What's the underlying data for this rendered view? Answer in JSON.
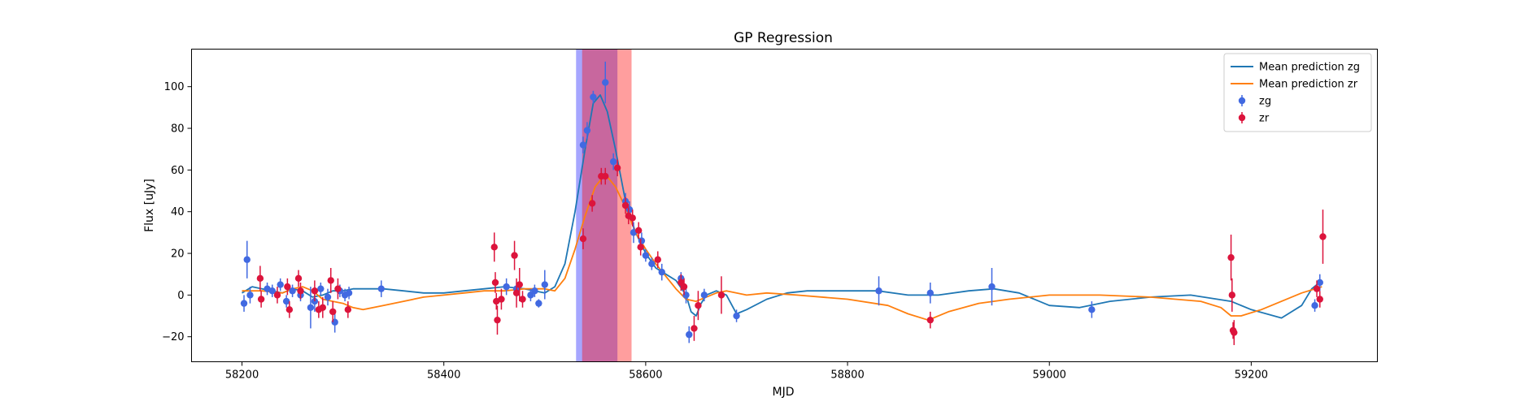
{
  "chart_data": {
    "type": "scatter",
    "title": "GP Regression",
    "xlabel": "MJD",
    "ylabel": "Flux [uJy]",
    "xlim": [
      58150,
      59325
    ],
    "ylim": [
      -32,
      118
    ],
    "x_ticks": [
      58200,
      58400,
      58600,
      58800,
      59000,
      59200
    ],
    "y_ticks": [
      -20,
      0,
      20,
      40,
      60,
      80,
      100
    ],
    "grid": false,
    "legend_position": "top-right",
    "shaded_regions": [
      {
        "x_start": 58531,
        "x_end": 58572,
        "color": "#0000ff",
        "opacity": 0.35
      },
      {
        "x_start": 58537,
        "x_end": 58586,
        "color": "#ff0000",
        "opacity": 0.38
      }
    ],
    "legend": [
      {
        "label": "Mean prediction zg",
        "kind": "line",
        "color": "#1f77b4"
      },
      {
        "label": "Mean prediction zr",
        "kind": "line",
        "color": "#ff7f0e"
      },
      {
        "label": "zg",
        "kind": "errorbar",
        "color": "#4169e1"
      },
      {
        "label": "zr",
        "kind": "errorbar",
        "color": "#dc143c"
      }
    ],
    "lines": [
      {
        "name": "Mean prediction zg",
        "color": "#1f77b4",
        "x": [
          58200,
          58210,
          58220,
          58230,
          58240,
          58250,
          58260,
          58270,
          58280,
          58290,
          58300,
          58310,
          58320,
          58340,
          58360,
          58380,
          58400,
          58420,
          58440,
          58460,
          58480,
          58500,
          58510,
          58520,
          58530,
          58540,
          58548,
          58555,
          58562,
          58570,
          58580,
          58590,
          58600,
          58610,
          58620,
          58630,
          58640,
          58645,
          58650,
          58655,
          58660,
          58670,
          58680,
          58690,
          58700,
          58720,
          58740,
          58760,
          58780,
          58800,
          58830,
          58860,
          58890,
          58920,
          58945,
          58970,
          59000,
          59030,
          59060,
          59100,
          59140,
          59180,
          59200,
          59230,
          59250,
          59260,
          59270
        ],
        "y": [
          1,
          4,
          3,
          2,
          1,
          3,
          2,
          -1,
          0,
          2,
          2,
          3,
          3,
          3,
          2,
          1,
          1,
          2,
          3,
          4,
          3,
          1,
          4,
          15,
          40,
          70,
          92,
          96,
          88,
          70,
          45,
          30,
          20,
          13,
          10,
          7,
          0,
          -8,
          -10,
          -4,
          0,
          2,
          0,
          -9,
          -7,
          -2,
          1,
          2,
          2,
          2,
          2,
          0,
          0,
          2,
          3,
          1,
          -5,
          -6,
          -3,
          -1,
          0,
          -3,
          -7,
          -11,
          -5,
          3,
          7
        ]
      },
      {
        "name": "Mean prediction zr",
        "color": "#ff7f0e",
        "x": [
          58200,
          58220,
          58240,
          58250,
          58260,
          58270,
          58280,
          58290,
          58300,
          58310,
          58320,
          58340,
          58360,
          58380,
          58400,
          58420,
          58440,
          58460,
          58480,
          58500,
          58510,
          58520,
          58530,
          58540,
          58550,
          58560,
          58570,
          58580,
          58590,
          58600,
          58610,
          58620,
          58630,
          58640,
          58650,
          58660,
          58670,
          58680,
          58700,
          58720,
          58750,
          58800,
          58840,
          58860,
          58880,
          58900,
          58930,
          58960,
          59000,
          59050,
          59100,
          59150,
          59170,
          59180,
          59190,
          59210,
          59230,
          59250,
          59270
        ],
        "y": [
          2,
          2,
          1,
          3,
          4,
          2,
          -2,
          -3,
          -4,
          -6,
          -7,
          -5,
          -3,
          -1,
          0,
          1,
          2,
          2,
          3,
          3,
          2,
          8,
          22,
          38,
          52,
          58,
          52,
          42,
          30,
          22,
          15,
          9,
          3,
          -2,
          -3,
          -1,
          1,
          2,
          0,
          1,
          0,
          -2,
          -5,
          -9,
          -12,
          -8,
          -4,
          -2,
          0,
          0,
          -1,
          -3,
          -6,
          -10,
          -10,
          -7,
          -3,
          1,
          4
        ]
      }
    ],
    "series": [
      {
        "name": "zg",
        "color": "#4169e1",
        "points": [
          {
            "x": 58202,
            "y": -4,
            "err": 4
          },
          {
            "x": 58205,
            "y": 17,
            "err": 9
          },
          {
            "x": 58208,
            "y": 0,
            "err": 4
          },
          {
            "x": 58225,
            "y": 3,
            "err": 3
          },
          {
            "x": 58230,
            "y": 2,
            "err": 3
          },
          {
            "x": 58238,
            "y": 5,
            "err": 3
          },
          {
            "x": 58244,
            "y": -3,
            "err": 3
          },
          {
            "x": 58250,
            "y": 2,
            "err": 3
          },
          {
            "x": 58258,
            "y": 0,
            "err": 3
          },
          {
            "x": 58268,
            "y": -6,
            "err": 10
          },
          {
            "x": 58272,
            "y": -3,
            "err": 5
          },
          {
            "x": 58278,
            "y": 3,
            "err": 3
          },
          {
            "x": 58285,
            "y": -1,
            "err": 4
          },
          {
            "x": 58292,
            "y": -13,
            "err": 5
          },
          {
            "x": 58297,
            "y": 2,
            "err": 3
          },
          {
            "x": 58302,
            "y": 0,
            "err": 3
          },
          {
            "x": 58306,
            "y": 1,
            "err": 3
          },
          {
            "x": 58338,
            "y": 3,
            "err": 4
          },
          {
            "x": 58462,
            "y": 4,
            "err": 4
          },
          {
            "x": 58472,
            "y": 3,
            "err": 3
          },
          {
            "x": 58486,
            "y": 0,
            "err": 3
          },
          {
            "x": 58490,
            "y": 2,
            "err": 3
          },
          {
            "x": 58494,
            "y": -4,
            "err": 2
          },
          {
            "x": 58500,
            "y": 5,
            "err": 7
          },
          {
            "x": 58538,
            "y": 72,
            "err": 4
          },
          {
            "x": 58542,
            "y": 79,
            "err": 4
          },
          {
            "x": 58548,
            "y": 95,
            "err": 3
          },
          {
            "x": 58560,
            "y": 102,
            "err": 10
          },
          {
            "x": 58568,
            "y": 64,
            "err": 4
          },
          {
            "x": 58580,
            "y": 45,
            "err": 4
          },
          {
            "x": 58584,
            "y": 41,
            "err": 4
          },
          {
            "x": 58588,
            "y": 30,
            "err": 5
          },
          {
            "x": 58596,
            "y": 26,
            "err": 4
          },
          {
            "x": 58600,
            "y": 19,
            "err": 3
          },
          {
            "x": 58606,
            "y": 15,
            "err": 3
          },
          {
            "x": 58616,
            "y": 11,
            "err": 4
          },
          {
            "x": 58635,
            "y": 8,
            "err": 3
          },
          {
            "x": 58640,
            "y": 0,
            "err": 4
          },
          {
            "x": 58643,
            "y": -19,
            "err": 4
          },
          {
            "x": 58658,
            "y": 0,
            "err": 3
          },
          {
            "x": 58690,
            "y": -10,
            "err": 3
          },
          {
            "x": 58831,
            "y": 2,
            "err": 7
          },
          {
            "x": 58882,
            "y": 1,
            "err": 5
          },
          {
            "x": 58943,
            "y": 4,
            "err": 9
          },
          {
            "x": 59042,
            "y": -7,
            "err": 4
          },
          {
            "x": 59263,
            "y": -5,
            "err": 3
          },
          {
            "x": 59268,
            "y": 6,
            "err": 4
          }
        ]
      },
      {
        "name": "zr",
        "color": "#dc143c",
        "points": [
          {
            "x": 58218,
            "y": 8,
            "err": 6
          },
          {
            "x": 58219,
            "y": -2,
            "err": 4
          },
          {
            "x": 58235,
            "y": 0,
            "err": 4
          },
          {
            "x": 58245,
            "y": 4,
            "err": 4
          },
          {
            "x": 58247,
            "y": -7,
            "err": 4
          },
          {
            "x": 58256,
            "y": 8,
            "err": 4
          },
          {
            "x": 58258,
            "y": 2,
            "err": 4
          },
          {
            "x": 58272,
            "y": 2,
            "err": 5
          },
          {
            "x": 58276,
            "y": -7,
            "err": 4
          },
          {
            "x": 58280,
            "y": -6,
            "err": 5
          },
          {
            "x": 58288,
            "y": 7,
            "err": 6
          },
          {
            "x": 58290,
            "y": -8,
            "err": 5
          },
          {
            "x": 58295,
            "y": 3,
            "err": 5
          },
          {
            "x": 58305,
            "y": -7,
            "err": 4
          },
          {
            "x": 58450,
            "y": 23,
            "err": 7
          },
          {
            "x": 58451,
            "y": 6,
            "err": 5
          },
          {
            "x": 58452,
            "y": -3,
            "err": 4
          },
          {
            "x": 58453,
            "y": -12,
            "err": 7
          },
          {
            "x": 58457,
            "y": -2,
            "err": 5
          },
          {
            "x": 58470,
            "y": 19,
            "err": 7
          },
          {
            "x": 58472,
            "y": 1,
            "err": 7
          },
          {
            "x": 58475,
            "y": 5,
            "err": 8
          },
          {
            "x": 58478,
            "y": -2,
            "err": 4
          },
          {
            "x": 58538,
            "y": 27,
            "err": 5
          },
          {
            "x": 58547,
            "y": 44,
            "err": 4
          },
          {
            "x": 58556,
            "y": 57,
            "err": 4
          },
          {
            "x": 58560,
            "y": 57,
            "err": 4
          },
          {
            "x": 58572,
            "y": 61,
            "err": 4
          },
          {
            "x": 58580,
            "y": 43,
            "err": 4
          },
          {
            "x": 58583,
            "y": 38,
            "err": 4
          },
          {
            "x": 58587,
            "y": 37,
            "err": 4
          },
          {
            "x": 58593,
            "y": 31,
            "err": 4
          },
          {
            "x": 58595,
            "y": 23,
            "err": 4
          },
          {
            "x": 58612,
            "y": 17,
            "err": 4
          },
          {
            "x": 58635,
            "y": 6,
            "err": 4
          },
          {
            "x": 58638,
            "y": 4,
            "err": 4
          },
          {
            "x": 58648,
            "y": -16,
            "err": 6
          },
          {
            "x": 58652,
            "y": -5,
            "err": 7
          },
          {
            "x": 58675,
            "y": 0,
            "err": 9
          },
          {
            "x": 58882,
            "y": -12,
            "err": 4
          },
          {
            "x": 59180,
            "y": 18,
            "err": 11
          },
          {
            "x": 59181,
            "y": 0,
            "err": 8
          },
          {
            "x": 59182,
            "y": -17,
            "err": 4
          },
          {
            "x": 59183,
            "y": -18,
            "err": 6
          },
          {
            "x": 59265,
            "y": 3,
            "err": 4
          },
          {
            "x": 59268,
            "y": -2,
            "err": 4
          },
          {
            "x": 59271,
            "y": 28,
            "err": 13
          }
        ]
      }
    ]
  }
}
